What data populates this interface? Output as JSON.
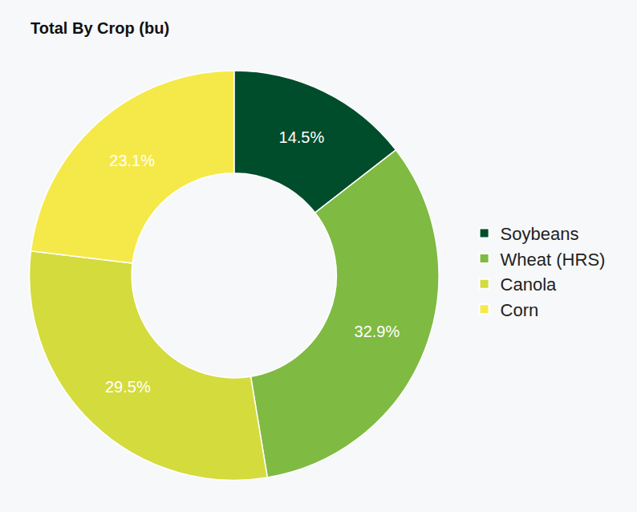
{
  "chart_data": {
    "type": "pie",
    "title": "Total By Crop (bu)",
    "categories": [
      "Soybeans",
      "Wheat (HRS)",
      "Canola",
      "Corn"
    ],
    "values": [
      14.5,
      32.9,
      29.5,
      23.1
    ],
    "value_labels": [
      "14.5%",
      "32.9%",
      "29.5%",
      "23.1%"
    ],
    "colors": [
      "#004d2c",
      "#7fba42",
      "#d4db3c",
      "#f5e94a"
    ],
    "data_labels": true,
    "legend": "right"
  }
}
